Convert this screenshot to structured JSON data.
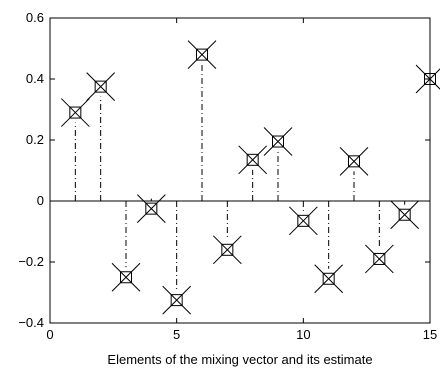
{
  "chart_data": {
    "type": "stem",
    "xlabel": "Elements of the mixing vector and its estimate",
    "ylabel": "",
    "xlim": [
      0,
      15
    ],
    "ylim": [
      -0.4,
      0.6
    ],
    "xticks": [
      0,
      5,
      10,
      15
    ],
    "xtick_labels": [
      "0",
      "5",
      "10",
      "15"
    ],
    "yticks": [
      -0.4,
      -0.2,
      0,
      0.2,
      0.4,
      0.6
    ],
    "ytick_labels": [
      "−0.4",
      "−0.2",
      "0",
      "0.2",
      "0.4",
      "0.6"
    ],
    "grid": false,
    "stem_style": "dash-dot",
    "series": [
      {
        "marker": "square",
        "x": [
          1,
          2,
          3,
          4,
          5,
          6,
          7,
          8,
          9,
          10,
          11,
          12,
          13,
          14,
          15
        ],
        "values": [
          0.29,
          0.375,
          -0.25,
          -0.025,
          -0.325,
          0.48,
          -0.16,
          0.135,
          0.195,
          -0.065,
          -0.255,
          0.13,
          -0.19,
          -0.045,
          0.4
        ]
      },
      {
        "marker": "cross",
        "x": [
          1,
          2,
          3,
          4,
          5,
          6,
          7,
          8,
          9,
          10,
          11,
          12,
          13,
          14,
          15
        ],
        "values": [
          0.29,
          0.375,
          -0.25,
          -0.025,
          -0.325,
          0.48,
          -0.16,
          0.135,
          0.195,
          -0.065,
          -0.255,
          0.13,
          -0.19,
          -0.045,
          0.4
        ]
      }
    ],
    "colors": {
      "line": "#000000",
      "background": "#ffffff"
    }
  }
}
